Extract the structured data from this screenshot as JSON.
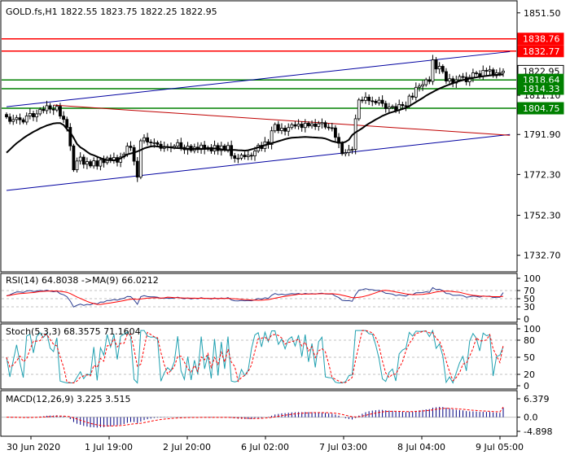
{
  "colors": {
    "background": "#ffffff",
    "frame": "#000000",
    "grid": "#c0c0c0",
    "bull_candle": "#000000",
    "bear_candle": "#000000",
    "ma_line": "#000000",
    "resistance": "#ff0000",
    "support": "#008000",
    "channel": "#0000a0",
    "red_trend": "#c00000",
    "rsi": "#2a3b8f",
    "rsi_ma": "#ff0000",
    "stoch_main": "#1fa0b0",
    "stoch_signal": "#ff0000",
    "macd_hist": "#000080",
    "macd_signal": "#ff0000",
    "current_price_box": "#ffffff",
    "resistance_box": "#ff0000",
    "support_box": "#008000"
  },
  "header": {
    "main": "GOLD.fs,H1  1822.55 1823.75 1822.25 1822.95",
    "rsi": "RSI(14) 64.8038  ->MA(9) 66.0212",
    "stoch": "Stoch(5,3,3) 68.3575 71.1604",
    "macd": "MACD(12,26,9) 3.225 3.515"
  },
  "price_axis": {
    "ticks": [
      "1851.50",
      "1811.10",
      "1791.90",
      "1772.30",
      "1752.30",
      "1732.70"
    ],
    "tick_values": [
      1851.5,
      1811.1,
      1791.9,
      1772.3,
      1752.3,
      1732.7
    ]
  },
  "rsi_axis": {
    "ticks": [
      "100",
      "70",
      "50",
      "30",
      "0"
    ],
    "tick_values": [
      100,
      70,
      50,
      30,
      0
    ]
  },
  "stoch_axis": {
    "ticks": [
      "100",
      "80",
      "50",
      "20",
      "0"
    ],
    "tick_values": [
      100,
      80,
      50,
      20,
      0
    ]
  },
  "macd_axis": {
    "ticks": [
      "6.379",
      "0.0",
      "-4.898"
    ],
    "tick_values": [
      6.379,
      0.0,
      -4.898
    ]
  },
  "time_axis": {
    "labels": [
      "30 Jun 2020",
      "1 Jul 19:00",
      "2 Jul 20:00",
      "6 Jul 02:00",
      "7 Jul 03:00",
      "8 Jul 04:00",
      "9 Jul 05:00"
    ]
  },
  "price_labels": [
    {
      "text": "1838.76",
      "value": 1838.76,
      "kind": "resistance"
    },
    {
      "text": "1832.77",
      "value": 1832.77,
      "kind": "resistance"
    },
    {
      "text": "1822.95",
      "value": 1822.95,
      "kind": "current"
    },
    {
      "text": "1818.64",
      "value": 1818.64,
      "kind": "support"
    },
    {
      "text": "1814.33",
      "value": 1814.33,
      "kind": "support"
    },
    {
      "text": "1804.75",
      "value": 1804.75,
      "kind": "support"
    }
  ],
  "chart_data": {
    "type": "candlestick",
    "symbol": "GOLD.fs",
    "timeframe": "H1",
    "ohlc_last": {
      "open": 1822.55,
      "high": 1823.75,
      "low": 1822.25,
      "close": 1822.95
    },
    "ylim": [
      1725.0,
      1857.0
    ],
    "grid": false,
    "horizontal_levels": [
      {
        "value": 1838.76,
        "role": "resistance"
      },
      {
        "value": 1832.77,
        "role": "resistance"
      },
      {
        "value": 1818.64,
        "role": "support"
      },
      {
        "value": 1814.33,
        "role": "support"
      },
      {
        "value": 1804.75,
        "role": "support"
      }
    ],
    "trendlines": [
      {
        "role": "channel-upper",
        "from": [
          0,
          1805.5
        ],
        "to": [
          150,
          1832.5
        ]
      },
      {
        "role": "channel-lower",
        "from": [
          0,
          1764.5
        ],
        "to": [
          150,
          1791.9
        ]
      },
      {
        "role": "red-trend",
        "from": [
          14,
          1806.3
        ],
        "to": [
          150,
          1791.5
        ]
      }
    ],
    "close_series": [
      1800.5,
      1798.3,
      1799.2,
      1800.1,
      1799.1,
      1798.0,
      1801.0,
      1802.2,
      1800.5,
      1802.0,
      1804.2,
      1803.6,
      1806.0,
      1804.3,
      1803.9,
      1805.7,
      1800.9,
      1799.3,
      1795.4,
      1786.3,
      1774.6,
      1778.9,
      1780.8,
      1777.3,
      1778.6,
      1776.5,
      1779.0,
      1776.4,
      1779.5,
      1778.1,
      1780.4,
      1779.3,
      1780.6,
      1778.3,
      1780.9,
      1782.3,
      1786.2,
      1785.5,
      1778.8,
      1771.0,
      1788.8,
      1790.3,
      1788.2,
      1787.8,
      1787.9,
      1787.1,
      1785.1,
      1786.0,
      1785.9,
      1785.6,
      1786.2,
      1787.9,
      1785.6,
      1784.4,
      1786.2,
      1784.0,
      1785.7,
      1784.5,
      1786.7,
      1784.6,
      1785.5,
      1783.8,
      1786.5,
      1784.0,
      1786.3,
      1784.4,
      1786.5,
      1781.5,
      1780.2,
      1780.3,
      1781.8,
      1781.0,
      1781.7,
      1781.4,
      1783.8,
      1786.6,
      1785.0,
      1788.3,
      1787.0,
      1793.7,
      1796.8,
      1793.8,
      1795.0,
      1793.5,
      1795.3,
      1796.7,
      1796.0,
      1797.0,
      1795.3,
      1797.4,
      1796.1,
      1797.1,
      1795.8,
      1797.2,
      1797.7,
      1795.5,
      1795.2,
      1795.1,
      1790.5,
      1787.6,
      1782.5,
      1783.0,
      1784.4,
      1784.6,
      1799.6,
      1808.8,
      1808.6,
      1810.2,
      1808.4,
      1808.2,
      1807.4,
      1808.7,
      1807.1,
      1804.6,
      1805.3,
      1805.6,
      1803.8,
      1806.6,
      1806.0,
      1805.8,
      1810.7,
      1810.2,
      1815.0,
      1815.6,
      1816.3,
      1818.7,
      1817.9,
      1828.5,
      1824.0,
      1825.3,
      1822.7,
      1818.1,
      1819.2,
      1817.1,
      1818.7,
      1820.3,
      1820.0,
      1817.7,
      1819.9,
      1822.1,
      1821.7,
      1820.5,
      1823.3,
      1823.0,
      1823.6,
      1820.7,
      1822.1,
      1822.2,
      1822.95
    ],
    "ma_series": [
      1783.0,
      1784.5,
      1786.1,
      1787.6,
      1788.8,
      1790.1,
      1791.2,
      1792.2,
      1793.2,
      1794.0,
      1794.9,
      1795.6,
      1796.3,
      1796.8,
      1797.3,
      1797.5,
      1797.5,
      1796.6,
      1794.5,
      1792.9,
      1790.3,
      1787.2,
      1785.6,
      1784.6,
      1783.4,
      1782.3,
      1781.7,
      1781.0,
      1780.3,
      1779.8,
      1779.4,
      1779.3,
      1779.2,
      1779.5,
      1780.2,
      1781.3,
      1782.1,
      1782.6,
      1783.0,
      1783.6,
      1784.3,
      1785.1,
      1785.6,
      1786.0,
      1786.2,
      1786.0,
      1785.8,
      1785.8,
      1785.7,
      1785.5,
      1785.3,
      1785.2,
      1785.1,
      1785.0,
      1784.9,
      1784.8,
      1784.8,
      1784.8,
      1784.8,
      1784.9,
      1785.0,
      1785.0,
      1785.0,
      1785.0,
      1784.6,
      1784.3,
      1784.2,
      1784.3,
      1784.3,
      1784.2,
      1784.1,
      1784.0,
      1784.2,
      1784.6,
      1785.1,
      1785.6,
      1786.1,
      1786.7,
      1787.1,
      1787.6,
      1788.1,
      1788.6,
      1789.1,
      1789.6,
      1790.0,
      1790.3,
      1790.4,
      1790.5,
      1790.6,
      1790.7,
      1790.6,
      1790.5,
      1790.4,
      1790.3,
      1790.2,
      1789.9,
      1789.3,
      1788.6,
      1788.2,
      1787.9,
      1787.8,
      1788.3,
      1789.3,
      1791.6,
      1792.9,
      1793.9,
      1795.0,
      1796.2,
      1797.3,
      1798.2,
      1799.2,
      1800.1,
      1801.0,
      1801.7,
      1802.4,
      1802.9,
      1803.4,
      1803.9,
      1804.4,
      1805.0,
      1805.8,
      1806.8,
      1807.8,
      1808.8,
      1809.8,
      1810.9,
      1811.8,
      1812.7,
      1813.6,
      1814.4,
      1815.1,
      1815.8,
      1816.4,
      1817.0,
      1817.6,
      1818.1,
      1818.5,
      1818.9,
      1819.3,
      1819.6,
      1819.9,
      1820.2,
      1820.4,
      1820.6,
      1820.8,
      1821.0,
      1821.1,
      1821.2,
      1821.3
    ],
    "rsi": {
      "value": 64.8038,
      "ma": 66.0212,
      "levels": [
        70,
        50,
        30
      ]
    },
    "stochastic": {
      "k": 68.3575,
      "d": 71.1604,
      "levels": [
        80,
        50,
        20
      ]
    },
    "macd": {
      "main": 3.225,
      "signal": 3.515
    }
  }
}
